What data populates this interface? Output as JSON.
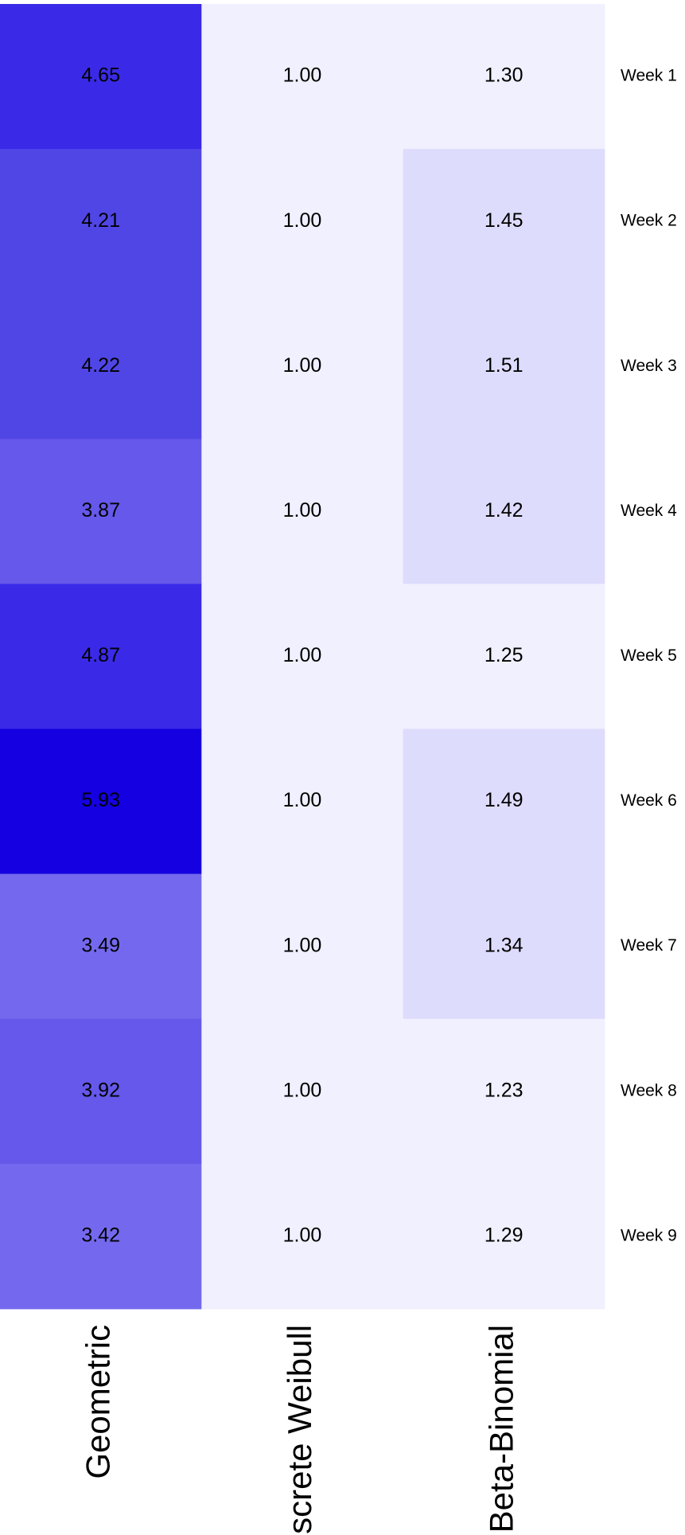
{
  "chart_data": {
    "type": "heatmap",
    "columns": [
      "Geometric",
      "Discrete Weibull",
      "Beta-Binomial"
    ],
    "rows": [
      "Week 1",
      "Week 2",
      "Week 3",
      "Week 4",
      "Week 5",
      "Week 6",
      "Week 7",
      "Week 8",
      "Week 9"
    ],
    "values": [
      [
        4.65,
        1,
        1.3
      ],
      [
        4.21,
        1,
        1.45
      ],
      [
        4.22,
        1,
        1.51
      ],
      [
        3.87,
        1,
        1.42
      ],
      [
        4.87,
        1,
        1.25
      ],
      [
        5.93,
        1,
        1.49
      ],
      [
        3.49,
        1,
        1.34
      ],
      [
        3.92,
        1,
        1.23
      ],
      [
        3.42,
        1,
        1.29
      ]
    ],
    "value_labels": [
      [
        "4.65",
        "1.00",
        "1.30"
      ],
      [
        "4.21",
        "1.00",
        "1.45"
      ],
      [
        "4.22",
        "1.00",
        "1.51"
      ],
      [
        "3.87",
        "1.00",
        "1.42"
      ],
      [
        "4.87",
        "1.00",
        "1.25"
      ],
      [
        "5.93",
        "1.00",
        "1.49"
      ],
      [
        "3.49",
        "1.00",
        "1.34"
      ],
      [
        "3.92",
        "1.00",
        "1.23"
      ],
      [
        "3.42",
        "1.00",
        "1.29"
      ]
    ],
    "colors": [
      [
        "#3a2ae8",
        "#f0f0fe",
        "#f0f0fe"
      ],
      [
        "#5046e6",
        "#f0f0fe",
        "#dedcfc"
      ],
      [
        "#5046e6",
        "#f0f0fe",
        "#dedcfc"
      ],
      [
        "#6558ea",
        "#f0f0fe",
        "#dedcfc"
      ],
      [
        "#3a2ae8",
        "#f0f0fe",
        "#f0f0fe"
      ],
      [
        "#1400e0",
        "#f0f0fe",
        "#dedcfc"
      ],
      [
        "#7469ee",
        "#f0f0fe",
        "#dedcfc"
      ],
      [
        "#6558ea",
        "#f0f0fe",
        "#f0f0fe"
      ],
      [
        "#7469ee",
        "#f0f0fe",
        "#f0f0fe"
      ]
    ]
  }
}
